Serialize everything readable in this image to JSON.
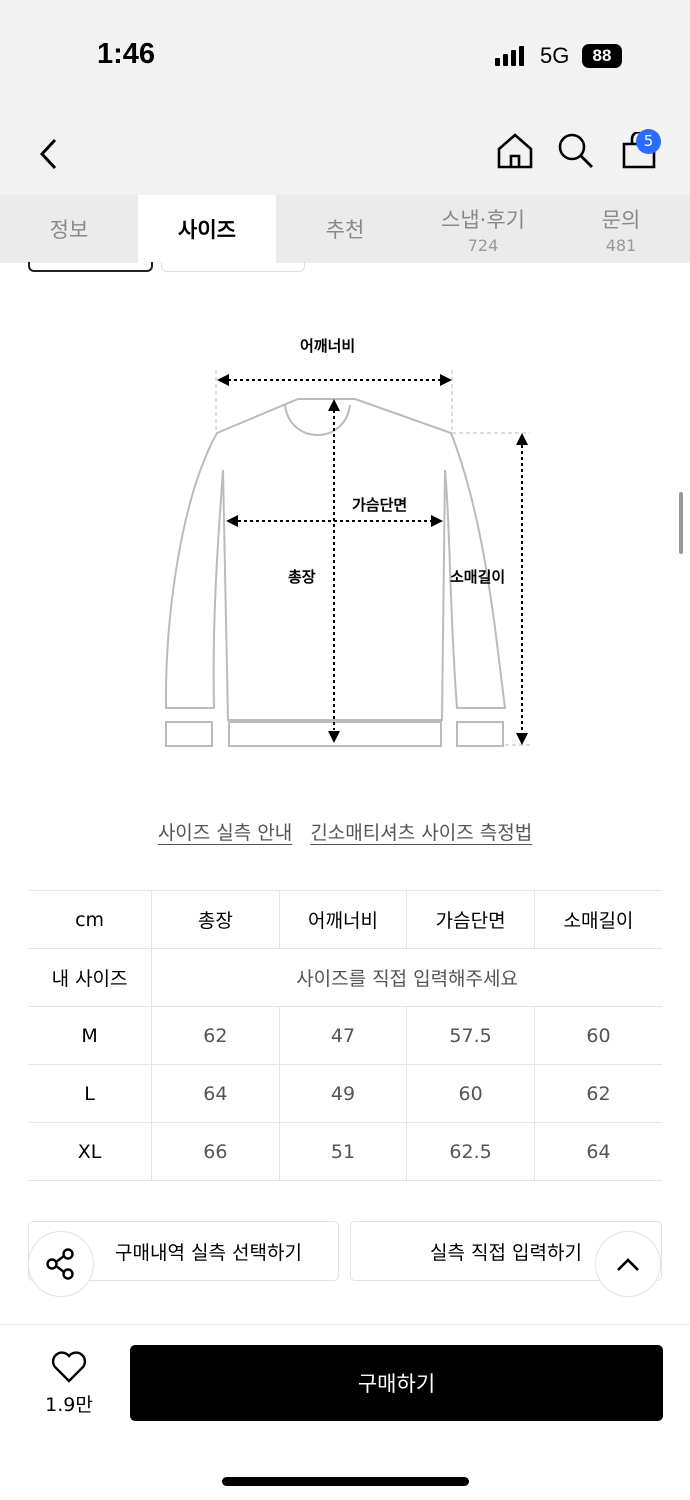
{
  "status_bar": {
    "time": "1:46",
    "network": "5G",
    "battery": "88"
  },
  "header": {
    "cart_count": "5",
    "icons": [
      "back-chevron-icon",
      "home-icon",
      "search-icon",
      "shopping-bag-icon"
    ]
  },
  "tabs": [
    {
      "label": "정보",
      "count": null
    },
    {
      "label": "사이즈",
      "count": null,
      "active": true
    },
    {
      "label": "추천",
      "count": null
    },
    {
      "label": "스냅·후기",
      "count": "724"
    },
    {
      "label": "문의",
      "count": "481"
    }
  ],
  "diagram": {
    "shoulder": "어깨너비",
    "chest": "가슴단면",
    "length": "총장",
    "sleeve": "소매길이"
  },
  "links": {
    "guide": "사이즈 실측 안내",
    "method": "긴소매티셔츠 사이즈 측정법"
  },
  "size_table": {
    "headers": [
      "cm",
      "총장",
      "어깨너비",
      "가슴단면",
      "소매길이"
    ],
    "my_size": {
      "label": "내 사이즈",
      "placeholder": "사이즈를 직접 입력해주세요"
    },
    "rows": [
      {
        "size": "M",
        "values": [
          "62",
          "47",
          "57.5",
          "60"
        ]
      },
      {
        "size": "L",
        "values": [
          "64",
          "49",
          "60",
          "62"
        ]
      },
      {
        "size": "XL",
        "values": [
          "66",
          "51",
          "62.5",
          "64"
        ]
      }
    ]
  },
  "buttons": {
    "select_history": "구매내역 실측 선택하기",
    "direct_input": "실측 직접 입력하기",
    "buy": "구매하기"
  },
  "like": {
    "count": "1.9만"
  },
  "accent_color": "#2b6bff"
}
